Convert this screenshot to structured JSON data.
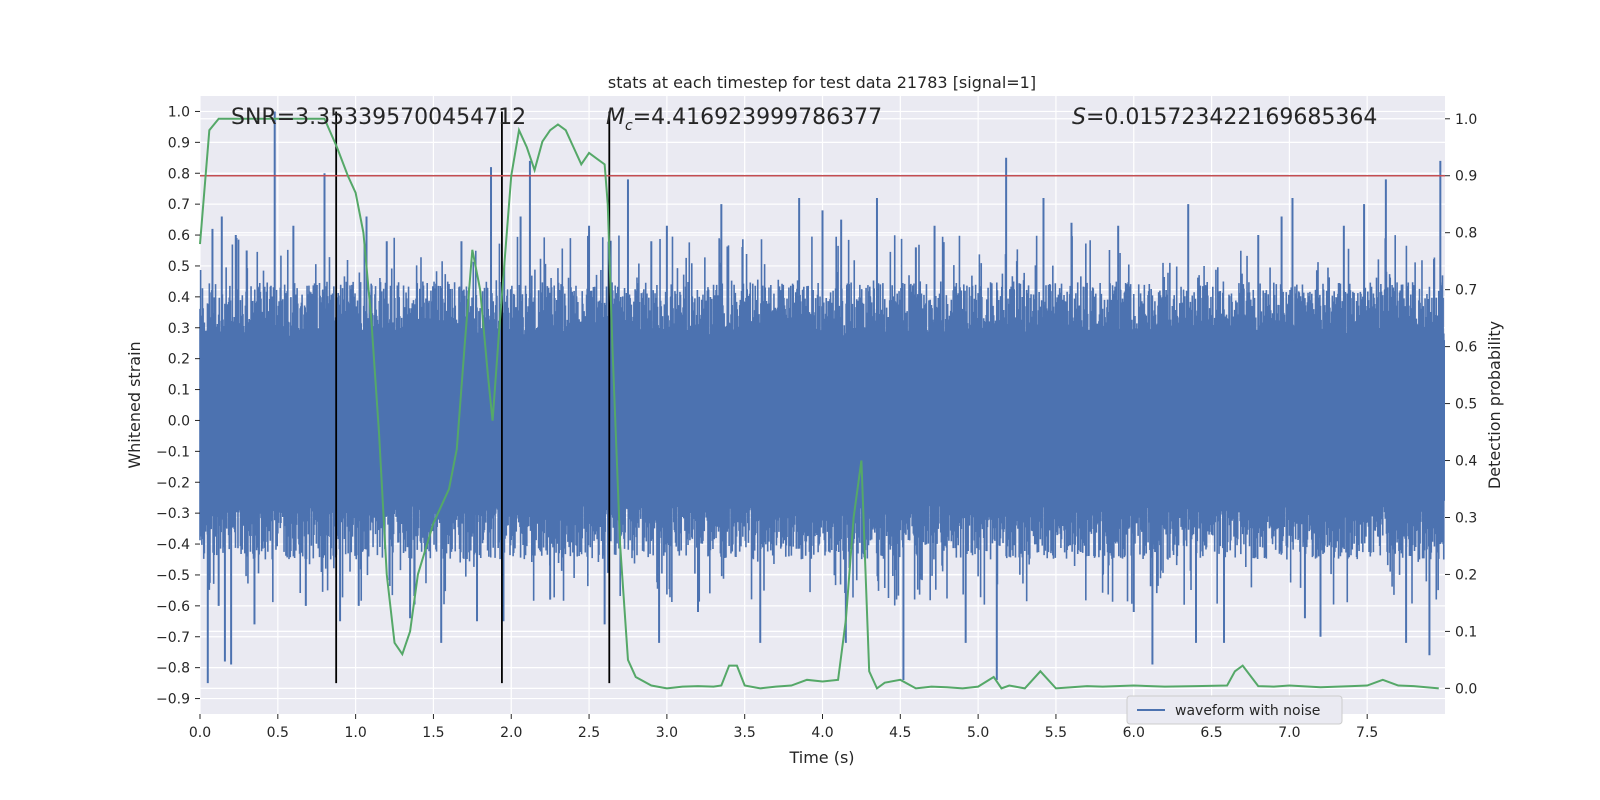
{
  "chart_data": {
    "type": "line",
    "title": "stats at each timestep for test data 21783 [signal=1]",
    "xlabel": "Time (s)",
    "ylabel": "Whitened strain",
    "y2label": "Detection probability",
    "xlim": [
      0.0,
      8.0
    ],
    "ylim": [
      -0.95,
      1.05
    ],
    "y2lim": [
      -0.045,
      1.04
    ],
    "x_ticks": [
      0.0,
      0.5,
      1.0,
      1.5,
      2.0,
      2.5,
      3.0,
      3.5,
      4.0,
      4.5,
      5.0,
      5.5,
      6.0,
      6.5,
      7.0,
      7.5
    ],
    "x_tick_labels": [
      "0.0",
      "0.5",
      "1.0",
      "1.5",
      "2.0",
      "2.5",
      "3.0",
      "3.5",
      "4.0",
      "4.5",
      "5.0",
      "5.5",
      "6.0",
      "6.5",
      "7.0",
      "7.5"
    ],
    "y_ticks": [
      1.0,
      0.9,
      0.8,
      0.7,
      0.6,
      0.5,
      0.4,
      0.3,
      0.2,
      0.1,
      0.0,
      -0.1,
      -0.2,
      -0.3,
      -0.4,
      -0.5,
      -0.6,
      -0.7,
      -0.8,
      -0.9
    ],
    "y_tick_labels": [
      "1.0",
      "0.9",
      "0.8",
      "0.7",
      "0.6",
      "0.5",
      "0.4",
      "0.3",
      "0.2",
      "0.1",
      "0.0",
      "−0.1",
      "−0.2",
      "−0.3",
      "−0.4",
      "−0.5",
      "−0.6",
      "−0.7",
      "−0.8",
      "−0.9"
    ],
    "y2_ticks": [
      1.0,
      0.9,
      0.8,
      0.7,
      0.6,
      0.5,
      0.4,
      0.3,
      0.2,
      0.1,
      0.0
    ],
    "y2_tick_labels": [
      "1.0",
      "0.9",
      "0.8",
      "0.7",
      "0.6",
      "0.5",
      "0.4",
      "0.3",
      "0.2",
      "0.1",
      "0.0"
    ],
    "annotations": {
      "snr": "SNR=3.353395700454712",
      "mc_symbol": "M",
      "mc_sub": "c",
      "mc_value": "=4.416923999786377",
      "s_symbol": "S",
      "s_value": "=0.015723422169685364"
    },
    "threshold_y2": 0.9,
    "vlines_x": [
      0.875,
      1.94,
      2.63
    ],
    "vline_range": [
      -0.85,
      1.0
    ],
    "legend": {
      "label": "waveform with noise",
      "placement": "lower-right"
    },
    "waveform": {
      "name": "waveform with noise",
      "color": "#4c72b0",
      "envelope_upper": 0.45,
      "envelope_lower": -0.45,
      "spikes": [
        [
          0.05,
          -0.85
        ],
        [
          0.08,
          0.62
        ],
        [
          0.12,
          -0.6
        ],
        [
          0.14,
          0.66
        ],
        [
          0.16,
          -0.78
        ],
        [
          0.2,
          -0.79
        ],
        [
          0.23,
          0.6
        ],
        [
          0.35,
          -0.66
        ],
        [
          0.48,
          1.0
        ],
        [
          0.6,
          0.63
        ],
        [
          0.68,
          -0.6
        ],
        [
          0.8,
          0.8
        ],
        [
          0.9,
          -0.65
        ],
        [
          1.02,
          -0.6
        ],
        [
          1.07,
          0.66
        ],
        [
          1.35,
          -0.64
        ],
        [
          1.55,
          -0.72
        ],
        [
          1.68,
          0.58
        ],
        [
          1.78,
          -0.65
        ],
        [
          1.87,
          0.82
        ],
        [
          1.95,
          -0.65
        ],
        [
          2.06,
          0.66
        ],
        [
          2.12,
          0.84
        ],
        [
          2.25,
          -0.58
        ],
        [
          2.5,
          0.63
        ],
        [
          2.6,
          -0.66
        ],
        [
          2.75,
          0.78
        ],
        [
          2.95,
          -0.72
        ],
        [
          3.0,
          0.63
        ],
        [
          3.35,
          0.7
        ],
        [
          3.6,
          -0.72
        ],
        [
          3.85,
          0.72
        ],
        [
          4.12,
          0.65
        ],
        [
          4.15,
          -0.72
        ],
        [
          4.35,
          0.72
        ],
        [
          4.52,
          -0.84
        ],
        [
          4.72,
          0.63
        ],
        [
          4.92,
          -0.72
        ],
        [
          5.12,
          -0.84
        ],
        [
          5.18,
          0.85
        ],
        [
          5.42,
          0.72
        ],
        [
          5.9,
          0.63
        ],
        [
          6.12,
          -0.79
        ],
        [
          6.35,
          0.7
        ],
        [
          6.4,
          -0.72
        ],
        [
          6.58,
          -0.72
        ],
        [
          6.95,
          0.66
        ],
        [
          7.02,
          0.72
        ],
        [
          7.2,
          -0.7
        ],
        [
          7.35,
          0.63
        ],
        [
          7.48,
          0.7
        ],
        [
          7.62,
          0.78
        ],
        [
          7.75,
          -0.72
        ],
        [
          7.9,
          -0.76
        ],
        [
          7.97,
          0.84
        ],
        [
          0.3,
          0.55
        ],
        [
          1.2,
          0.58
        ],
        [
          2.9,
          0.58
        ],
        [
          3.2,
          -0.62
        ],
        [
          4.0,
          0.68
        ],
        [
          4.6,
          0.56
        ],
        [
          5.6,
          0.64
        ],
        [
          6.0,
          -0.62
        ],
        [
          6.8,
          0.6
        ],
        [
          7.1,
          -0.64
        ]
      ]
    },
    "probability": {
      "name": "detection probability",
      "color": "#55a868",
      "x": [
        0.0,
        0.06,
        0.12,
        0.2,
        0.3,
        0.4,
        0.5,
        0.6,
        0.7,
        0.8,
        0.88,
        0.95,
        1.0,
        1.05,
        1.1,
        1.15,
        1.2,
        1.25,
        1.3,
        1.35,
        1.4,
        1.5,
        1.6,
        1.65,
        1.7,
        1.75,
        1.8,
        1.85,
        1.88,
        1.92,
        2.0,
        2.05,
        2.1,
        2.15,
        2.2,
        2.25,
        2.3,
        2.35,
        2.4,
        2.45,
        2.5,
        2.55,
        2.6,
        2.62,
        2.65,
        2.7,
        2.75,
        2.8,
        2.9,
        3.0,
        3.1,
        3.2,
        3.3,
        3.35,
        3.4,
        3.45,
        3.5,
        3.6,
        3.7,
        3.8,
        3.9,
        4.0,
        4.1,
        4.15,
        4.2,
        4.25,
        4.3,
        4.35,
        4.4,
        4.5,
        4.6,
        4.7,
        4.8,
        4.9,
        5.0,
        5.1,
        5.15,
        5.2,
        5.3,
        5.4,
        5.5,
        5.6,
        5.7,
        5.8,
        6.0,
        6.2,
        6.4,
        6.6,
        6.65,
        6.7,
        6.8,
        6.9,
        7.0,
        7.2,
        7.4,
        7.5,
        7.6,
        7.7,
        7.8,
        7.96
      ],
      "y": [
        0.78,
        0.98,
        1.0,
        1.0,
        1.0,
        1.0,
        1.0,
        1.0,
        1.0,
        1.0,
        0.95,
        0.9,
        0.87,
        0.8,
        0.65,
        0.45,
        0.2,
        0.08,
        0.06,
        0.1,
        0.2,
        0.29,
        0.35,
        0.42,
        0.6,
        0.77,
        0.7,
        0.55,
        0.47,
        0.62,
        0.9,
        0.98,
        0.95,
        0.91,
        0.96,
        0.98,
        0.99,
        0.98,
        0.95,
        0.92,
        0.94,
        0.93,
        0.92,
        0.85,
        0.6,
        0.25,
        0.05,
        0.02,
        0.005,
        0.0,
        0.003,
        0.004,
        0.003,
        0.005,
        0.04,
        0.04,
        0.005,
        0.0,
        0.003,
        0.005,
        0.015,
        0.012,
        0.015,
        0.12,
        0.3,
        0.4,
        0.03,
        0.0,
        0.01,
        0.015,
        0.0,
        0.003,
        0.002,
        0.0,
        0.003,
        0.02,
        0.0,
        0.005,
        0.0,
        0.03,
        0.0,
        0.002,
        0.004,
        0.003,
        0.005,
        0.003,
        0.004,
        0.005,
        0.03,
        0.04,
        0.004,
        0.003,
        0.005,
        0.002,
        0.004,
        0.005,
        0.015,
        0.005,
        0.004,
        0.0
      ]
    },
    "threshold_color": "#c44e52"
  }
}
